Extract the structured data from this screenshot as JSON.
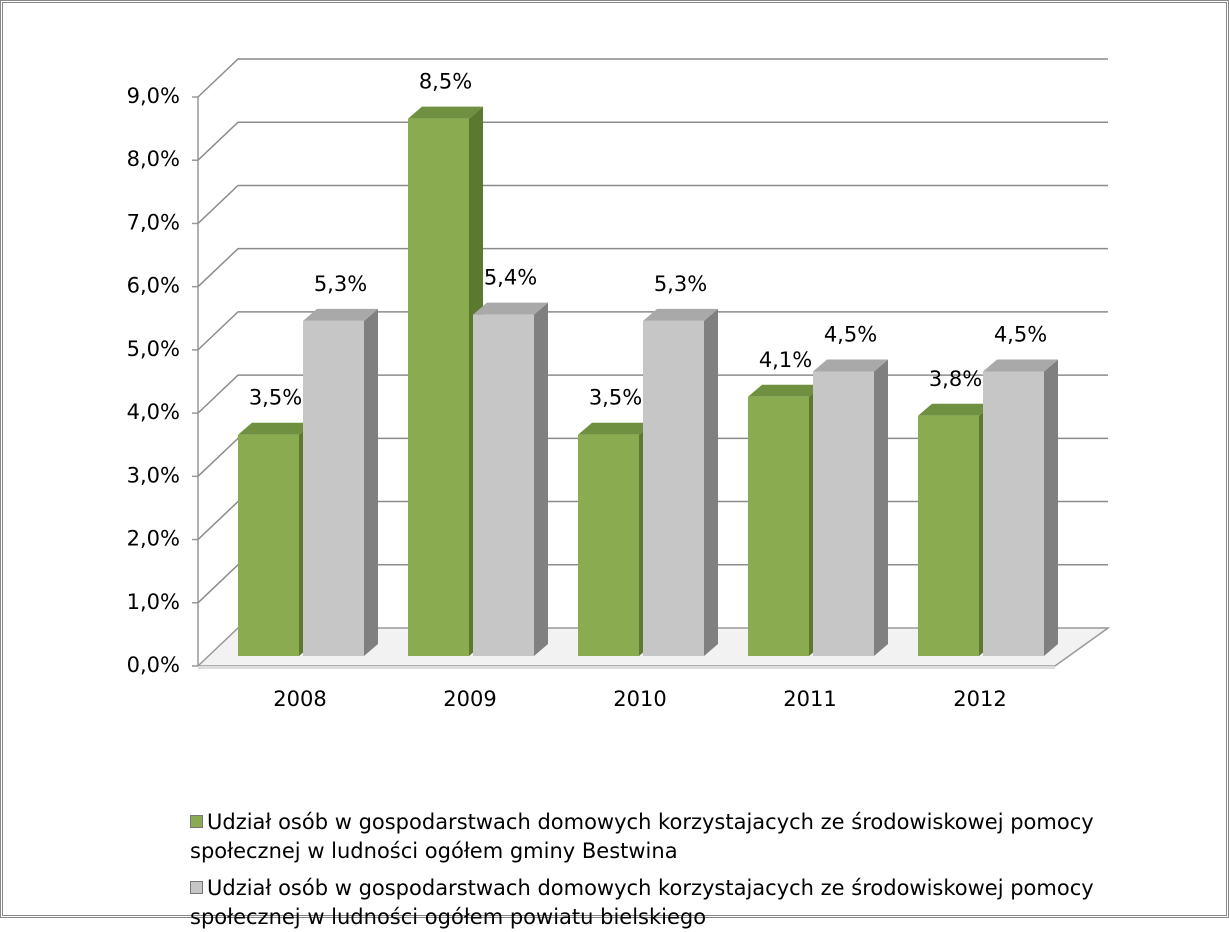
{
  "chart_data": {
    "type": "bar3d",
    "categories": [
      "2008",
      "2009",
      "2010",
      "2011",
      "2012"
    ],
    "series": [
      {
        "name": "Udział osób w gospodarstwach domowych korzystajacych ze środowiskowej pomocy społecznej w ludności ogółem gminy Bestwina",
        "color": "#8aab4f",
        "values": [
          3.5,
          8.5,
          3.5,
          4.1,
          3.8
        ],
        "value_labels": [
          "3,5%",
          "8,5%",
          "3,5%",
          "4,1%",
          "3,8%"
        ]
      },
      {
        "name": "Udział osób w gospodarstwach domowych korzystajacych ze środowiskowej pomocy społecznej w ludności ogółem powiatu bielskiego",
        "color": "#c6c6c6",
        "values": [
          5.3,
          5.4,
          5.3,
          4.5,
          4.5
        ],
        "value_labels": [
          "5,3%",
          "5,4%",
          "5,3%",
          "4,5%",
          "4,5%"
        ]
      }
    ],
    "ylim": [
      0,
      9
    ],
    "yticks": [
      {
        "value": 0,
        "label": "0,0%"
      },
      {
        "value": 1,
        "label": "1,0%"
      },
      {
        "value": 2,
        "label": "2,0%"
      },
      {
        "value": 3,
        "label": "3,0%"
      },
      {
        "value": 4,
        "label": "4,0%"
      },
      {
        "value": 5,
        "label": "5,0%"
      },
      {
        "value": 6,
        "label": "6,0%"
      },
      {
        "value": 7,
        "label": "7,0%"
      },
      {
        "value": 8,
        "label": "8,0%"
      },
      {
        "value": 9,
        "label": "9,0%"
      }
    ],
    "grid": true
  }
}
